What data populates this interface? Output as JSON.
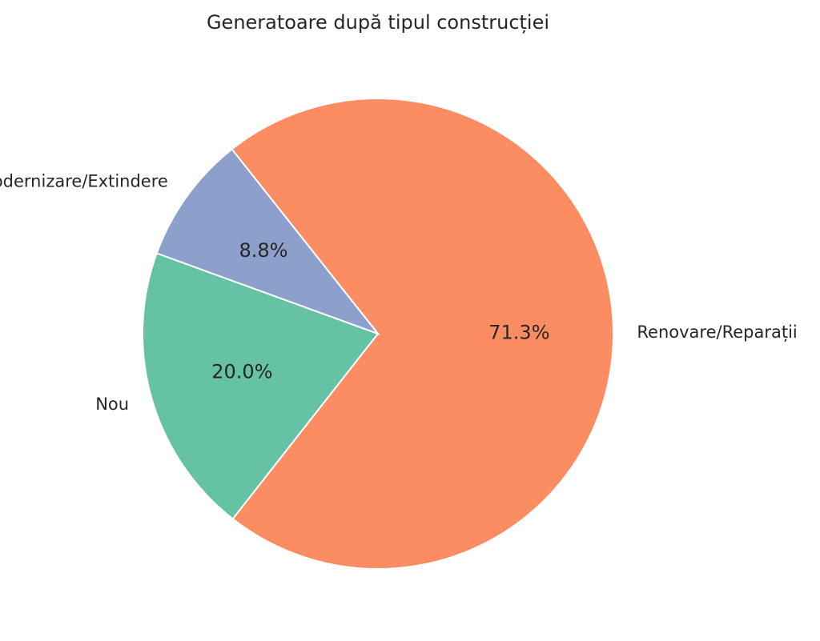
{
  "chart_data": {
    "type": "pie",
    "title": "Generatoare după tipul construcției",
    "slices": [
      {
        "label": "Nou",
        "value": 20.0,
        "display": "20.0%",
        "color": "#66c2a5"
      },
      {
        "label": "Renovare/Reparații",
        "value": 71.3,
        "display": "71.3%",
        "color": "#fc8d62"
      },
      {
        "label": "Modernizare/Extindere",
        "value": 8.8,
        "display": "8.8%",
        "color": "#8da0cb"
      }
    ],
    "start_angle_deg": 160,
    "direction": "counterclockwise"
  }
}
